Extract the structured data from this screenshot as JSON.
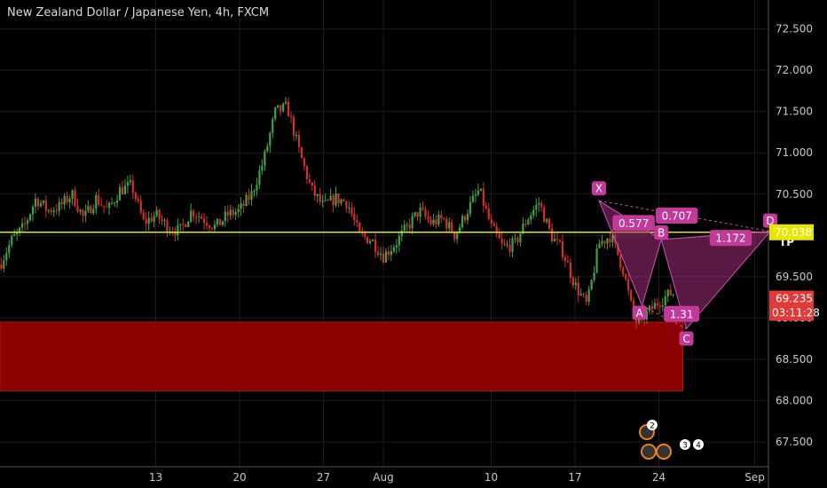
{
  "title": "New Zealand Dollar / Japanese Yen, 4h, FXCM",
  "colors": {
    "background": "#000000",
    "grid": "#1c1c1c",
    "up": "#43a047",
    "down": "#d32f2f",
    "yellow_line": "#e6e600",
    "zone": "#8b0000",
    "pattern": "#a0307a",
    "label_bg": "#c2399a",
    "price_badge": "#e03a3a"
  },
  "chart_data": {
    "type": "candlestick",
    "ylim": [
      67.2,
      72.85
    ],
    "y_ticks": [
      67.5,
      68.0,
      68.5,
      69.0,
      69.5,
      70.0,
      70.5,
      71.0,
      71.5,
      72.0,
      72.5
    ],
    "y_tick_labels": [
      "67.500",
      "68.000",
      "68.500",
      "69.000",
      "69.500",
      "70.000",
      "70.500",
      "71.000",
      "71.500",
      "72.000",
      "72.500"
    ],
    "x_ticks": [
      {
        "label": "13",
        "day": 13
      },
      {
        "label": "20",
        "day": 20
      },
      {
        "label": "27",
        "day": 27
      },
      {
        "label": "Aug",
        "day": 32
      },
      {
        "label": "10",
        "day": 41
      },
      {
        "label": "17",
        "day": 48
      },
      {
        "label": "24",
        "day": 55
      },
      {
        "label": "Sep",
        "day": 63
      }
    ],
    "x_axis_note": "day numbers count from July 0 (Aug 1 = 32)",
    "price_path": [
      [
        0,
        69.65
      ],
      [
        1,
        69.95
      ],
      [
        2,
        70.1
      ],
      [
        3,
        70.45
      ],
      [
        4,
        70.3
      ],
      [
        5,
        70.35
      ],
      [
        6,
        70.5
      ],
      [
        7,
        70.2
      ],
      [
        8,
        70.45
      ],
      [
        9,
        70.3
      ],
      [
        10,
        70.55
      ],
      [
        11,
        70.6
      ],
      [
        12,
        70.15
      ],
      [
        13,
        70.25
      ],
      [
        14,
        70.1
      ],
      [
        15,
        70.05
      ],
      [
        16,
        70.3
      ],
      [
        17,
        70.2
      ],
      [
        18,
        70.1
      ],
      [
        19,
        70.25
      ],
      [
        20,
        70.3
      ],
      [
        21,
        70.5
      ],
      [
        22,
        70.9
      ],
      [
        23,
        71.5
      ],
      [
        24,
        71.55
      ],
      [
        25,
        71.0
      ],
      [
        26,
        70.55
      ],
      [
        27,
        70.35
      ],
      [
        28,
        70.45
      ],
      [
        29,
        70.4
      ],
      [
        30,
        70.0
      ],
      [
        31,
        69.95
      ],
      [
        32,
        69.75
      ],
      [
        33,
        69.9
      ],
      [
        34,
        70.1
      ],
      [
        35,
        70.3
      ],
      [
        36,
        70.15
      ],
      [
        37,
        70.2
      ],
      [
        38,
        70.0
      ],
      [
        39,
        70.3
      ],
      [
        40,
        70.55
      ],
      [
        41,
        70.1
      ],
      [
        42,
        69.85
      ],
      [
        43,
        69.9
      ],
      [
        44,
        70.2
      ],
      [
        45,
        70.4
      ],
      [
        46,
        70.0
      ],
      [
        47,
        69.8
      ],
      [
        48,
        69.4
      ],
      [
        49,
        69.15
      ],
      [
        50,
        69.9
      ],
      [
        51,
        70.0
      ],
      [
        52,
        69.6
      ],
      [
        53,
        68.95
      ],
      [
        54,
        69.05
      ],
      [
        55,
        69.2
      ],
      [
        56,
        69.3
      ]
    ],
    "current_price": {
      "value": 70.038,
      "label": "70.038"
    },
    "last_price": {
      "value": 69.235,
      "label": "69.235"
    },
    "countdown": "03:11:28",
    "demand_zone": {
      "from_day": 0,
      "to_day": 57,
      "top": 68.95,
      "bottom": 68.12
    },
    "pattern": {
      "points": [
        {
          "name": "X",
          "day": 50,
          "price": 70.42
        },
        {
          "name": "A",
          "day": 53.6,
          "price": 69.15
        },
        {
          "name": "B",
          "day": 55.2,
          "price": 69.95
        },
        {
          "name": "C",
          "day": 57.3,
          "price": 68.87
        },
        {
          "name": "D",
          "day": 64.3,
          "price": 70.05
        }
      ],
      "ratios": [
        {
          "label": "0.577",
          "day": 52.9,
          "price": 70.15
        },
        {
          "label": "0.707",
          "day": 56.5,
          "price": 70.24
        },
        {
          "label": "1.31",
          "day": 56.9,
          "price": 69.05
        },
        {
          "label": "1.172",
          "day": 61.0,
          "price": 69.97
        }
      ],
      "tp_label": "TP"
    },
    "events": [
      {
        "label": "2"
      },
      {
        "label": "3"
      },
      {
        "label": "4"
      }
    ]
  }
}
